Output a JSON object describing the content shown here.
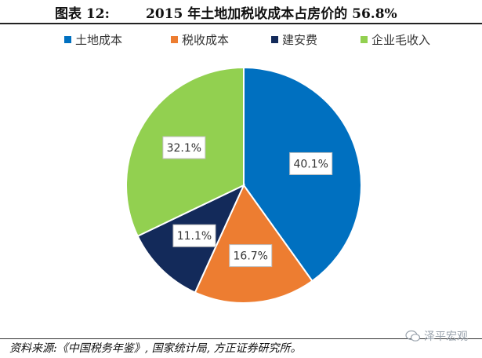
{
  "figure": {
    "label": "图表 12:",
    "title": "2015 年土地加税收成本占房价的 56.8%"
  },
  "source": "资料来源:《中国税务年鉴》, 国家统计局, 方正证券研究所。",
  "watermark": "泽平宏观",
  "chart_data": {
    "type": "pie",
    "title": "",
    "labels": [
      "土地成本",
      "税收成本",
      "建安费",
      "企业毛收入"
    ],
    "values": [
      40.1,
      16.7,
      11.1,
      32.1
    ],
    "data_labels": [
      "40.1%",
      "16.7%",
      "11.1%",
      "32.1%"
    ],
    "colors": [
      "#0070C0",
      "#ED7D31",
      "#132A5A",
      "#92D050"
    ],
    "start_angle": "12 o'clock",
    "direction": "clockwise",
    "legend_position": "top"
  }
}
